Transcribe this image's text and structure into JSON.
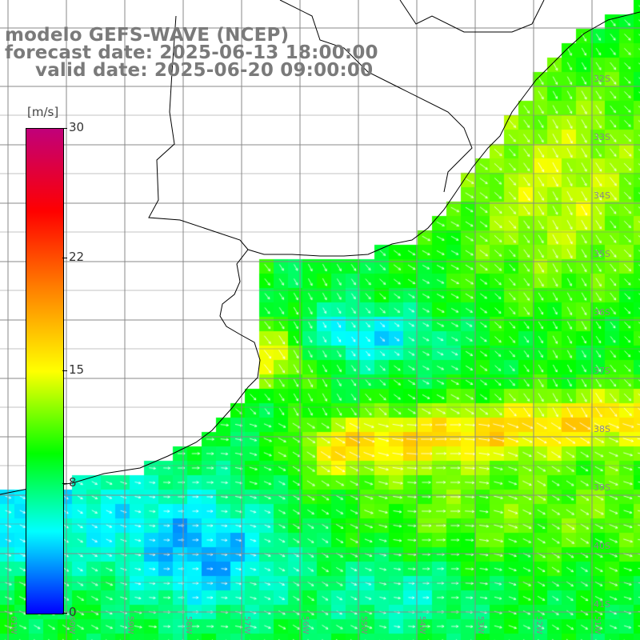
{
  "title": {
    "model": "modelo GEFS-WAVE (NCEP)",
    "forecast": "forecast date: 2025-06-13 18:00:00",
    "valid": "valid date: 2025-06-20 09:00:00"
  },
  "colorbar": {
    "unit": "[m/s]",
    "min": 0,
    "max": 30,
    "ticks": [
      {
        "value": 30,
        "label": "30"
      },
      {
        "value": 22,
        "label": "22"
      },
      {
        "value": 15,
        "label": "15"
      },
      {
        "value": 8,
        "label": "8"
      },
      {
        "value": 0,
        "label": "0"
      }
    ],
    "colors": [
      "#0000ff",
      "#00ffff",
      "#00ff00",
      "#ffff00",
      "#ff8000",
      "#ff0000",
      "#c0007a"
    ]
  },
  "lat_labels": [
    "32S",
    "33S",
    "34S",
    "35S",
    "36S",
    "37S",
    "38S",
    "39S",
    "40S",
    "41S"
  ],
  "lon_labels": [
    "61W",
    "60W",
    "59W",
    "58W",
    "57W",
    "56W",
    "55W",
    "54W",
    "53W",
    "52W",
    "51W",
    "50W"
  ],
  "colors": {
    "grid": "#888888",
    "coast": "#000000",
    "arrows": "#ffffff",
    "title": "#7a7a7a"
  }
}
